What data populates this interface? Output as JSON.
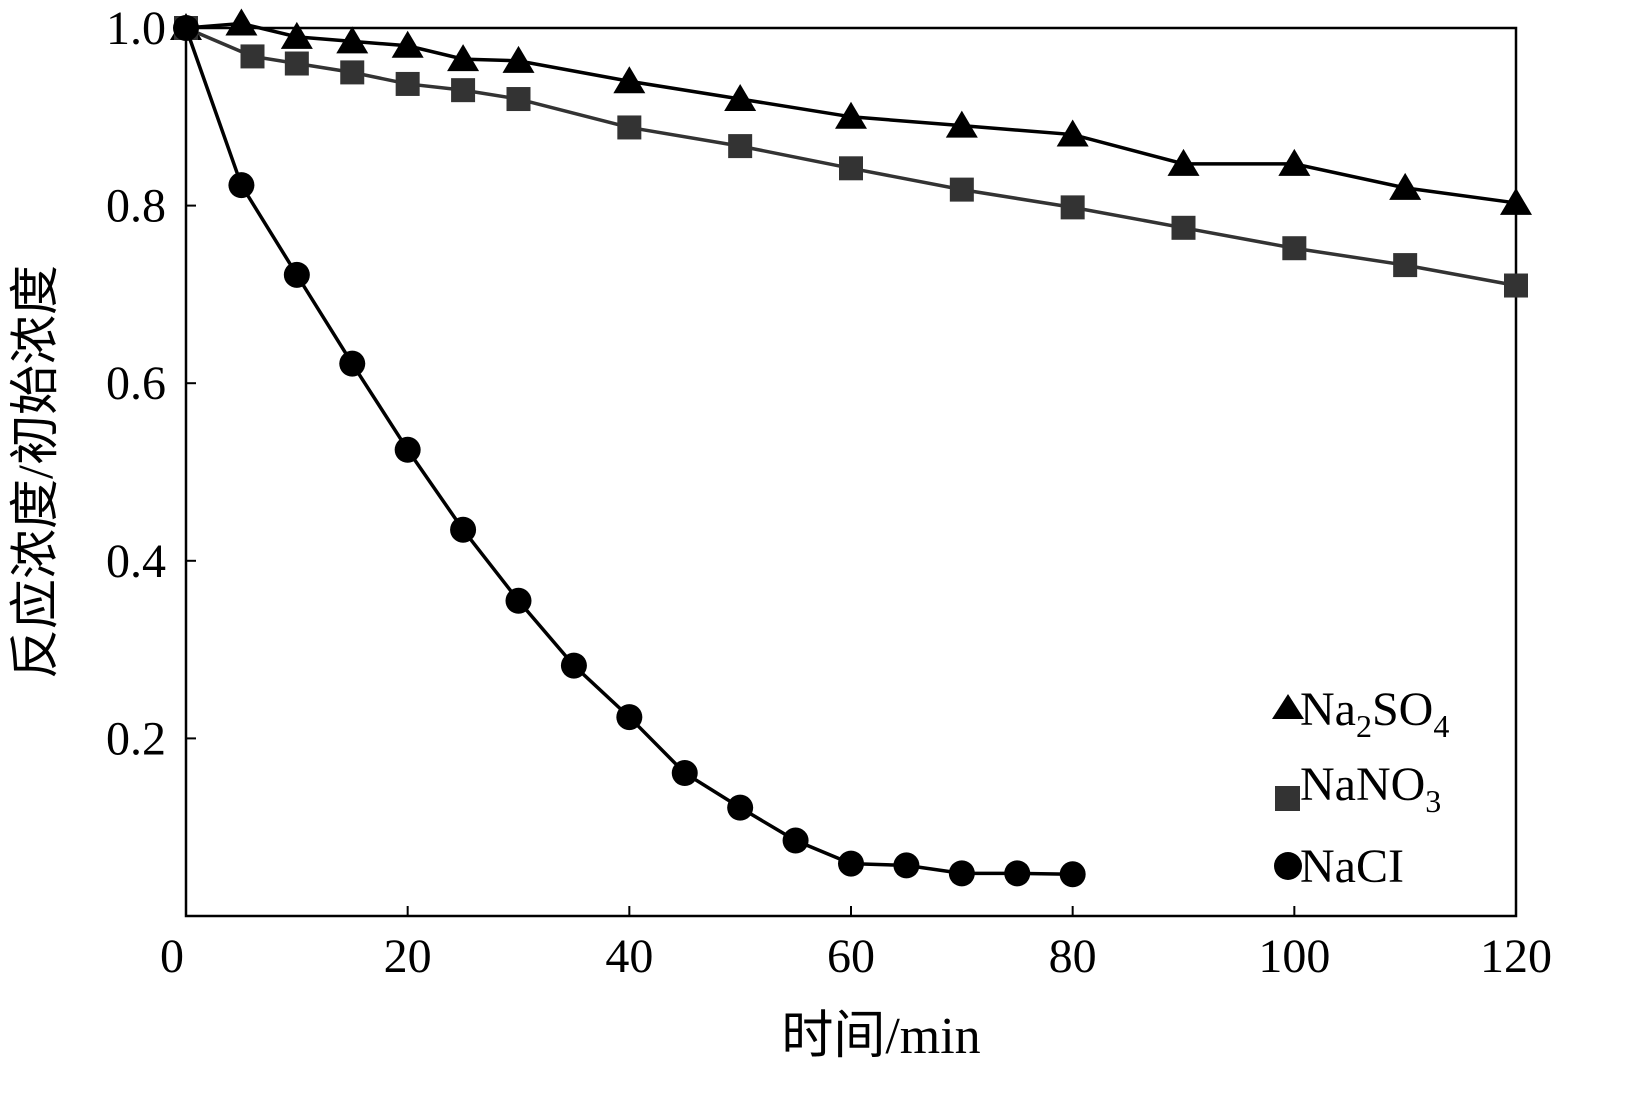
{
  "chart_data": {
    "type": "line",
    "xlabel": "时间/min",
    "ylabel": "反应浓度/初始浓度",
    "xlim": [
      0,
      120
    ],
    "ylim": [
      0,
      1.0
    ],
    "x_ticks": [
      {
        "value": 0,
        "label": "0"
      },
      {
        "value": 20,
        "label": "20"
      },
      {
        "value": 40,
        "label": "40"
      },
      {
        "value": 60,
        "label": "60"
      },
      {
        "value": 80,
        "label": "80"
      },
      {
        "value": 100,
        "label": "100"
      },
      {
        "value": 120,
        "label": "120"
      }
    ],
    "y_ticks": [
      {
        "value": 0.2,
        "label": "0.2"
      },
      {
        "value": 0.4,
        "label": "0.4"
      },
      {
        "value": 0.6,
        "label": "0.6"
      },
      {
        "value": 0.8,
        "label": "0.8"
      },
      {
        "value": 1.0,
        "label": "1.0"
      }
    ],
    "legend_position": "bottom-right",
    "series": [
      {
        "name": "Na2SO4",
        "legend_base": "Na",
        "legend_sub1": "2",
        "legend_mid": "SO",
        "legend_sub2": "4",
        "marker": "triangle",
        "color": "#000000",
        "x": [
          0,
          5,
          10,
          15,
          20,
          25,
          30,
          40,
          50,
          60,
          70,
          80,
          90,
          100,
          110,
          120
        ],
        "y": [
          1.0,
          1.005,
          0.99,
          0.985,
          0.98,
          0.965,
          0.963,
          0.94,
          0.92,
          0.9,
          0.89,
          0.88,
          0.847,
          0.847,
          0.82,
          0.803
        ]
      },
      {
        "name": "NaNO3",
        "legend_base": "NaNO",
        "legend_sub1": "3",
        "marker": "square",
        "color": "#333333",
        "x": [
          0,
          6,
          10,
          15,
          20,
          25,
          30,
          40,
          50,
          60,
          70,
          80,
          90,
          100,
          110,
          120
        ],
        "y": [
          1.0,
          0.968,
          0.96,
          0.95,
          0.937,
          0.93,
          0.92,
          0.888,
          0.867,
          0.842,
          0.818,
          0.798,
          0.775,
          0.752,
          0.733,
          0.71
        ]
      },
      {
        "name": "NaCI",
        "marker": "circle",
        "color": "#000000",
        "x": [
          0,
          5,
          10,
          15,
          20,
          25,
          30,
          35,
          40,
          45,
          50,
          55,
          60,
          65,
          70,
          75,
          80
        ],
        "y": [
          1.0,
          0.823,
          0.722,
          0.622,
          0.525,
          0.435,
          0.355,
          0.282,
          0.224,
          0.161,
          0.122,
          0.085,
          0.059,
          0.057,
          0.048,
          0.048,
          0.047
        ]
      }
    ]
  }
}
